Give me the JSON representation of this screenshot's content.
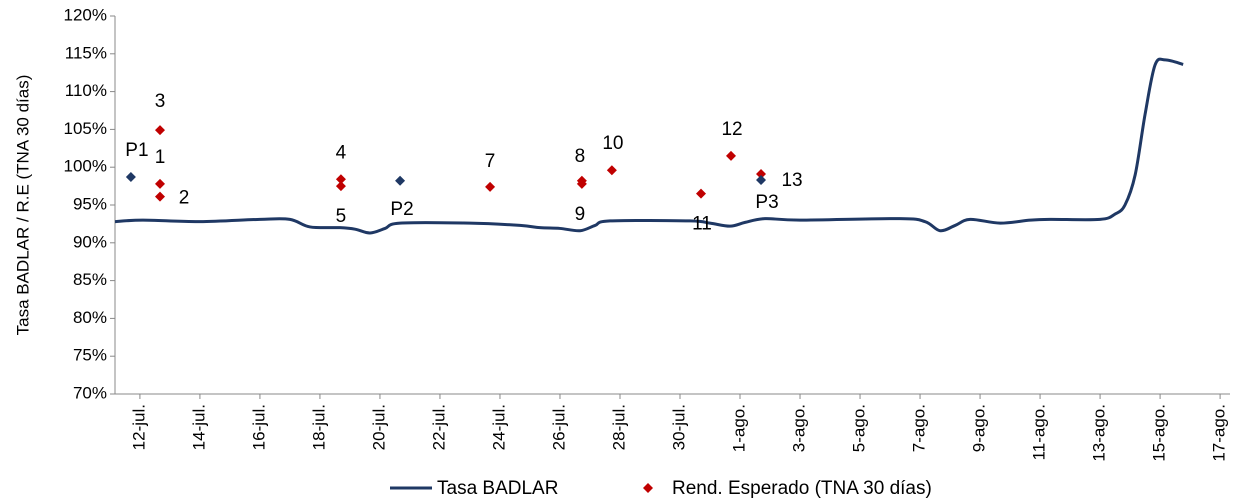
{
  "chart_data": {
    "type": "line",
    "ylabel": "Tasa BADLAR / R.E (TNA 30 días)",
    "xlim": [
      -0.83,
      36.33
    ],
    "xticks": [
      {
        "value": 0,
        "label": "12-jul."
      },
      {
        "value": 2,
        "label": "14-jul."
      },
      {
        "value": 4,
        "label": "16-jul."
      },
      {
        "value": 6,
        "label": "18-jul."
      },
      {
        "value": 8,
        "label": "20-jul."
      },
      {
        "value": 10,
        "label": "22-jul."
      },
      {
        "value": 12,
        "label": "24-jul."
      },
      {
        "value": 14,
        "label": "26-jul."
      },
      {
        "value": 16,
        "label": "28-jul."
      },
      {
        "value": 18,
        "label": "30-jul."
      },
      {
        "value": 20,
        "label": "1-ago."
      },
      {
        "value": 22,
        "label": "3-ago."
      },
      {
        "value": 24,
        "label": "5-ago."
      },
      {
        "value": 26,
        "label": "7-ago."
      },
      {
        "value": 28,
        "label": "9-ago."
      },
      {
        "value": 30,
        "label": "11-ago."
      },
      {
        "value": 32,
        "label": "13-ago."
      },
      {
        "value": 34,
        "label": "15-ago."
      },
      {
        "value": 36,
        "label": "17-ago."
      }
    ],
    "ylim": [
      70,
      120
    ],
    "yticks": [
      {
        "value": 70,
        "label": "70%"
      },
      {
        "value": 75,
        "label": "75%"
      },
      {
        "value": 80,
        "label": "80%"
      },
      {
        "value": 85,
        "label": "85%"
      },
      {
        "value": 90,
        "label": "90%"
      },
      {
        "value": 95,
        "label": "95%"
      },
      {
        "value": 100,
        "label": "100%"
      },
      {
        "value": 105,
        "label": "105%"
      },
      {
        "value": 110,
        "label": "110%"
      },
      {
        "value": 115,
        "label": "115%"
      },
      {
        "value": 120,
        "label": "120%"
      }
    ],
    "legend": "bottom",
    "series": [
      {
        "name": "Tasa BADLAR",
        "type": "line",
        "color": "#1f3864",
        "x": [
          -0.83,
          0.1,
          2,
          4,
          5,
          5.67,
          6.67,
          7.17,
          7.67,
          8.17,
          8.67,
          11,
          12.67,
          13.33,
          14,
          14.67,
          15.17,
          15.67,
          18.33,
          19,
          19.67,
          20.17,
          20.83,
          22,
          25.33,
          26.17,
          26.67,
          27.17,
          27.67,
          28.67,
          29.67,
          30.33,
          32,
          32.5,
          32.83,
          33.17,
          33.5,
          33.83,
          34.17,
          34.77
        ],
        "values": [
          92.8,
          93.0,
          92.8,
          93.1,
          93.1,
          92.1,
          92.0,
          91.8,
          91.3,
          91.9,
          92.6,
          92.6,
          92.3,
          92.0,
          91.9,
          91.6,
          92.3,
          92.9,
          92.9,
          92.6,
          92.2,
          92.7,
          93.2,
          93.0,
          93.2,
          92.8,
          91.6,
          92.3,
          93.1,
          92.6,
          93.0,
          93.1,
          93.1,
          93.8,
          95.0,
          99.0,
          107.0,
          113.5,
          114.2,
          113.6
        ]
      },
      {
        "name": "Rend. Esperado (TNA 30 días)",
        "type": "scatter",
        "color": "#c00000",
        "x": [
          0.67,
          0.67,
          0.67,
          6.7,
          6.7,
          11.67,
          14.73,
          14.73,
          15.73,
          18.7,
          19.7,
          20.7
        ],
        "values": [
          97.8,
          96.1,
          104.9,
          98.4,
          97.5,
          97.4,
          98.2,
          97.8,
          99.6,
          96.5,
          101.5,
          99.1
        ],
        "labels": [
          "1",
          "2",
          "3",
          "4",
          "5",
          "7",
          "8",
          "9",
          "10",
          "11",
          "12",
          "13"
        ]
      },
      {
        "type": "scatter",
        "color": "#1f3864",
        "x": [
          -0.3,
          8.67,
          20.7
        ],
        "values": [
          98.7,
          98.2,
          98.3
        ],
        "labels": [
          "P1",
          "P2",
          "P3"
        ]
      }
    ]
  }
}
